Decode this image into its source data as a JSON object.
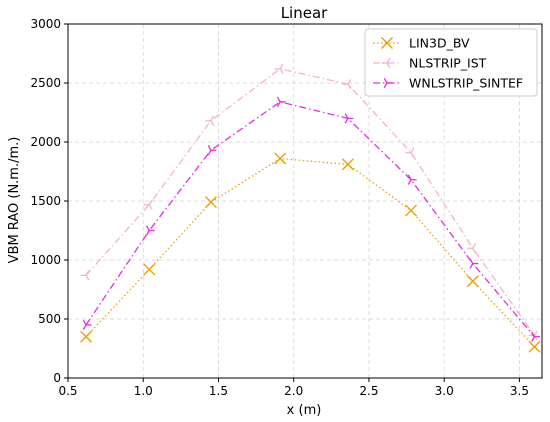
{
  "chart_data": {
    "type": "line",
    "title": "Linear",
    "xlabel": "x (m)",
    "ylabel": "VBM RAO (N.m./m.)",
    "xlim": [
      0.5,
      3.65
    ],
    "ylim": [
      0,
      3000
    ],
    "xticks": [
      0.5,
      1.0,
      1.5,
      2.0,
      2.5,
      3.0,
      3.5
    ],
    "xtick_labels": [
      "0.5",
      "1.0",
      "1.5",
      "2.0",
      "2.5",
      "3.0",
      "3.5"
    ],
    "yticks": [
      0,
      500,
      1000,
      1500,
      2000,
      2500,
      3000
    ],
    "ytick_labels": [
      "0",
      "500",
      "1000",
      "1500",
      "2000",
      "2500",
      "3000"
    ],
    "grid": true,
    "legend_position": "top-right",
    "x": [
      0.62,
      1.04,
      1.45,
      1.91,
      2.36,
      2.78,
      3.19,
      3.6
    ],
    "series": [
      {
        "name": "LIN3D_BV",
        "color": "#f0a000",
        "marker": "x-cross",
        "dash": "dotted",
        "values": [
          350,
          920,
          1490,
          1860,
          1810,
          1420,
          820,
          265
        ]
      },
      {
        "name": "NLSTRIP_IST",
        "color": "#f4b4c8",
        "marker": "tri-left",
        "dash": "dashdot",
        "values": [
          870,
          1470,
          2180,
          2620,
          2490,
          1910,
          1100,
          360
        ]
      },
      {
        "name": "WNLSTRIP_SINTEF",
        "color": "#e22ee2",
        "marker": "tri-right",
        "dash": "dashdot",
        "values": [
          450,
          1250,
          1930,
          2340,
          2200,
          1680,
          970,
          350
        ]
      }
    ]
  }
}
